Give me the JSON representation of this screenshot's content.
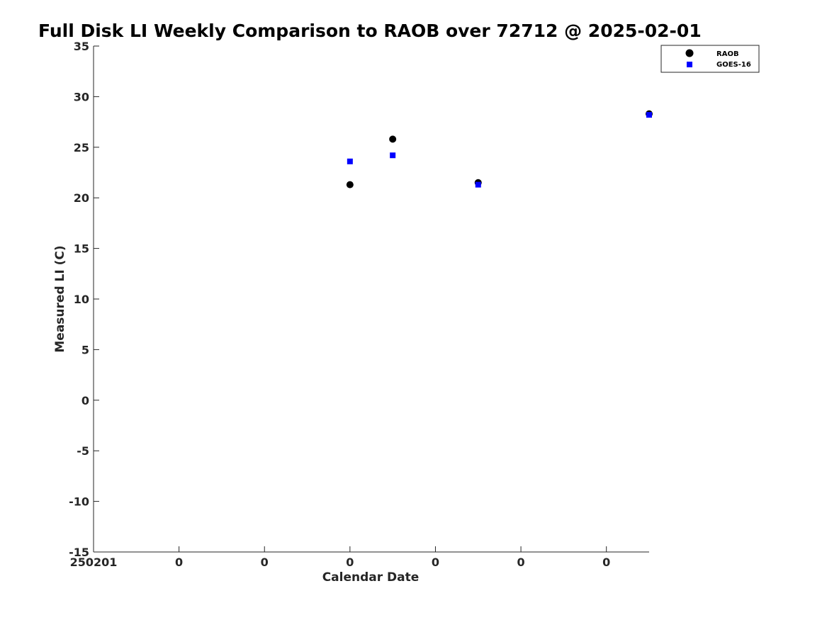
{
  "chart_data": {
    "type": "scatter",
    "title": "Full Disk LI Weekly Comparison to RAOB over 72712 @ 2025-02-01",
    "xlabel": "Calendar Date",
    "ylabel": "Measured LI (C)",
    "ylim": [
      -15,
      35
    ],
    "yticks": [
      35,
      30,
      25,
      20,
      15,
      10,
      5,
      0,
      -5,
      -10,
      -15
    ],
    "ytick_labels": [
      "35",
      "30",
      "25",
      "20",
      "15",
      "10",
      "5",
      "0",
      "-5",
      "-10",
      "-15"
    ],
    "xlim": [
      0,
      6.5
    ],
    "xticks": [
      0,
      1,
      2,
      3,
      4,
      5,
      6
    ],
    "xtick_labels": [
      "250201",
      "0",
      "0",
      "0",
      "0",
      "0",
      "0"
    ],
    "grid": false,
    "legend_position": "top-right",
    "series": [
      {
        "name": "RAOB",
        "marker": "circle",
        "color": "#000000",
        "points": [
          {
            "x": 3.0,
            "y": 21.3
          },
          {
            "x": 3.5,
            "y": 25.8
          },
          {
            "x": 4.5,
            "y": 21.5
          },
          {
            "x": 6.5,
            "y": 28.3
          }
        ]
      },
      {
        "name": "GOES-16",
        "marker": "square",
        "color": "#0000ff",
        "points": [
          {
            "x": 3.0,
            "y": 23.6
          },
          {
            "x": 3.5,
            "y": 24.2
          },
          {
            "x": 4.5,
            "y": 21.3
          },
          {
            "x": 6.5,
            "y": 28.2
          }
        ]
      }
    ]
  }
}
